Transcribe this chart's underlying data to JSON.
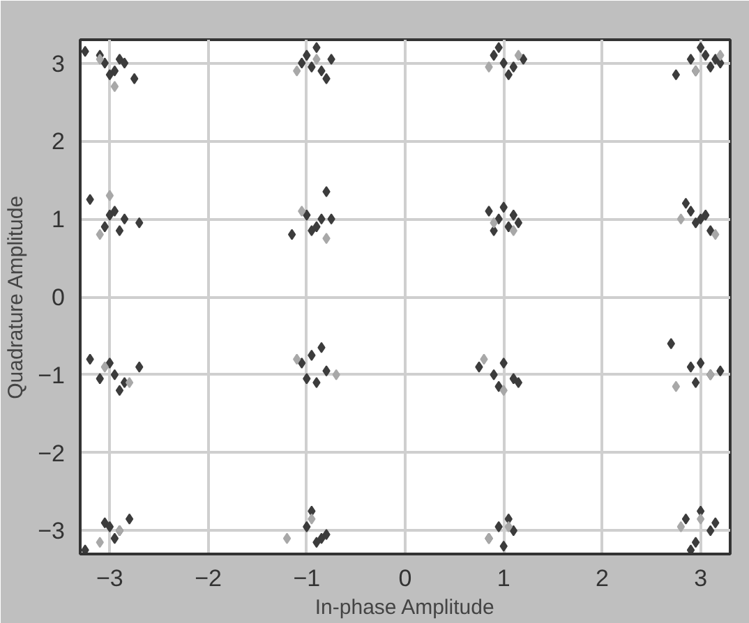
{
  "chart_data": {
    "type": "scatter",
    "xlabel": "In-phase Amplitude",
    "ylabel": "Quadrature Amplitude",
    "xlim": [
      -3.3,
      3.3
    ],
    "ylim": [
      -3.3,
      3.3
    ],
    "xticks": [
      -3,
      -2,
      -1,
      0,
      1,
      2,
      3
    ],
    "yticks": [
      -3,
      -2,
      -1,
      0,
      1,
      2,
      3
    ],
    "grid": true,
    "marker": "diamond",
    "series": [
      {
        "color": "#3c3c3c",
        "x": [
          -3.25,
          -3.05,
          -2.95,
          -2.9,
          -2.75,
          -3.0,
          -3.1,
          -2.85,
          -1.05,
          -0.95,
          -0.9,
          -0.8,
          -0.75,
          -1.0,
          -0.85,
          0.9,
          1.0,
          1.1,
          1.2,
          0.95,
          1.05,
          2.75,
          2.9,
          3.0,
          3.1,
          3.2,
          3.05,
          2.95,
          3.15,
          -3.2,
          -3.0,
          -2.9,
          -2.85,
          -2.7,
          -3.05,
          -2.95,
          -0.95,
          -0.85,
          -0.8,
          -1.0,
          -0.9,
          -0.75,
          -1.15,
          0.85,
          0.95,
          1.05,
          1.15,
          1.0,
          1.1,
          0.9,
          2.85,
          2.95,
          3.05,
          3.1,
          2.9,
          3.0,
          -3.2,
          -3.0,
          -2.95,
          -2.85,
          -2.7,
          -3.1,
          -2.9,
          -0.95,
          -0.85,
          -0.8,
          -1.0,
          -0.9,
          -1.05,
          0.75,
          0.9,
          1.0,
          1.1,
          1.15,
          0.95,
          2.7,
          2.9,
          3.0,
          3.1,
          3.2,
          2.95,
          -3.25,
          -3.0,
          -2.9,
          -2.8,
          -2.95,
          -3.05,
          -0.95,
          -0.85,
          -0.8,
          -1.0,
          -0.9,
          0.85,
          0.95,
          1.0,
          1.05,
          1.1,
          2.85,
          2.95,
          3.0,
          3.1,
          3.15,
          2.9
        ],
        "values": [
          3.15,
          3.0,
          2.9,
          3.05,
          2.8,
          2.85,
          3.1,
          3.0,
          3.0,
          2.95,
          3.2,
          2.8,
          3.05,
          3.1,
          2.9,
          3.1,
          3.0,
          2.95,
          3.05,
          3.2,
          2.85,
          2.85,
          3.05,
          3.2,
          2.95,
          3.0,
          3.1,
          2.9,
          3.05,
          1.25,
          1.05,
          0.85,
          1.0,
          0.95,
          0.9,
          1.1,
          0.85,
          1.0,
          1.35,
          1.05,
          0.9,
          1.0,
          0.8,
          1.1,
          1.0,
          0.9,
          0.95,
          1.15,
          1.05,
          0.85,
          1.2,
          0.95,
          1.05,
          0.85,
          1.1,
          1.0,
          -0.8,
          -0.85,
          -1.0,
          -1.1,
          -0.9,
          -1.05,
          -1.2,
          -0.75,
          -0.65,
          -0.95,
          -1.05,
          -1.1,
          -0.85,
          -0.9,
          -1.0,
          -0.85,
          -1.05,
          -1.1,
          -1.15,
          -0.6,
          -0.9,
          -0.85,
          -1.0,
          -0.95,
          -1.1,
          -3.25,
          -2.95,
          -3.0,
          -2.85,
          -3.1,
          -2.9,
          -2.75,
          -3.1,
          -3.05,
          -2.95,
          -3.15,
          -3.1,
          -2.95,
          -3.2,
          -2.85,
          -3.0,
          -2.85,
          -3.15,
          -2.75,
          -3.0,
          -2.9,
          -3.25
        ]
      },
      {
        "color": "#a8a8a8",
        "x": [
          -3.1,
          -2.95,
          -1.1,
          -0.9,
          0.85,
          1.15,
          2.95,
          3.2,
          -3.0,
          -3.1,
          -1.05,
          -0.8,
          1.1,
          0.9,
          2.8,
          3.15,
          -3.05,
          -2.8,
          -1.1,
          -0.7,
          0.8,
          1.0,
          2.75,
          3.1,
          -3.1,
          -2.9,
          -1.2,
          -0.95,
          0.85,
          1.05,
          2.8,
          3.0
        ],
        "values": [
          3.05,
          2.7,
          2.9,
          3.05,
          2.95,
          3.1,
          2.9,
          3.1,
          1.3,
          0.8,
          1.1,
          0.75,
          0.85,
          0.95,
          1.0,
          0.8,
          -0.9,
          -1.1,
          -0.8,
          -1.0,
          -0.8,
          -1.2,
          -1.15,
          -1.0,
          -3.15,
          -3.0,
          -3.1,
          -2.85,
          -3.1,
          -2.95,
          -2.95,
          -2.85
        ]
      }
    ]
  }
}
